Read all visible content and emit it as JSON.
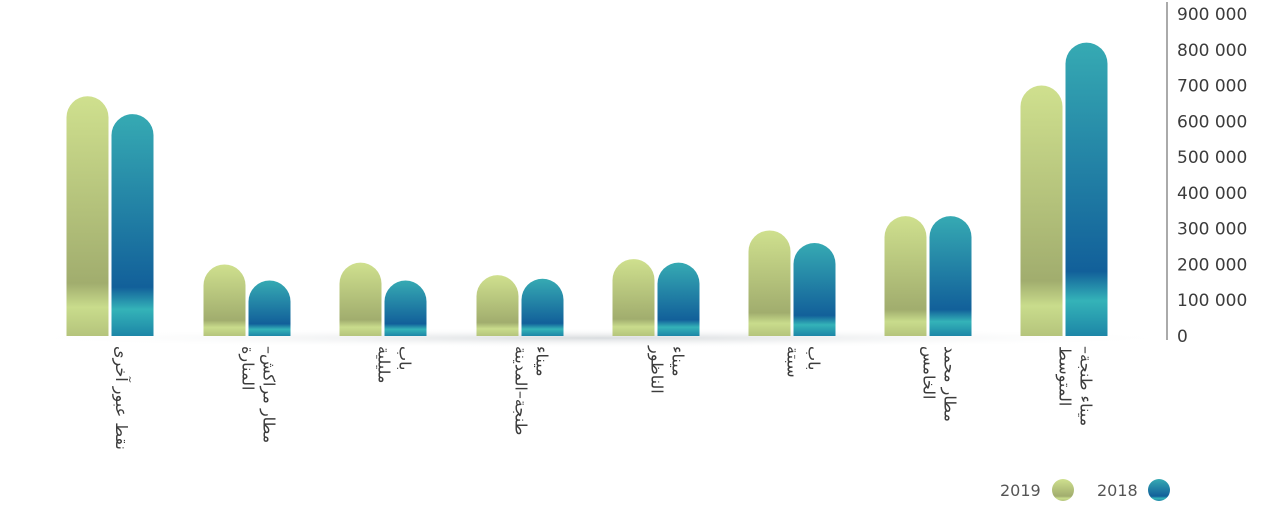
{
  "chart_data": {
    "type": "bar",
    "categories": [
      [
        "نقط عبور آخرى"
      ],
      [
        "مطار مراكش–",
        "المنارة"
      ],
      [
        "باب",
        "مليلية"
      ],
      [
        "ميناء",
        "طنجة–المدينة"
      ],
      [
        "ميناء",
        "الناظور"
      ],
      [
        "باب",
        "سبتة"
      ],
      [
        "مطار محمد",
        "الخامس"
      ],
      [
        "ميناء طنجة–",
        "المتوسط"
      ]
    ],
    "series": [
      {
        "name": "2019",
        "values": [
          670000,
          200000,
          205000,
          170000,
          215000,
          295000,
          335000,
          700000
        ]
      },
      {
        "name": "2018",
        "values": [
          620000,
          155000,
          155000,
          160000,
          205000,
          260000,
          335000,
          820000
        ]
      }
    ],
    "ylim": [
      0,
      900000
    ],
    "yticks": [
      0,
      100000,
      200000,
      300000,
      400000,
      500000,
      600000,
      700000,
      800000,
      900000
    ],
    "ytick_labels": [
      "0",
      "100 000",
      "200 000",
      "300 000",
      "400 000",
      "500 000",
      "600 000",
      "700 000",
      "800 000",
      "900 000"
    ],
    "y_axis_side": "right",
    "legend_position": "bottom-right",
    "legend_order": [
      "2018",
      "2019"
    ],
    "grid": false,
    "colors": {
      "2019": {
        "top": "#cfe08e",
        "mid": "#a3ad6e",
        "band": "#cfe08e"
      },
      "2018": {
        "top": "#36aab3",
        "mid": "#145f97",
        "band": "#33b6ba"
      },
      "axis": "#555555",
      "text": "#3c3c3c"
    }
  }
}
